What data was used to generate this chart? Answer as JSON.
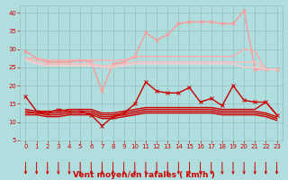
{
  "x": [
    0,
    1,
    2,
    3,
    4,
    5,
    6,
    7,
    8,
    9,
    10,
    11,
    12,
    13,
    14,
    15,
    16,
    17,
    18,
    19,
    20,
    21,
    22,
    23
  ],
  "series": [
    {
      "name": "line1_pink_rising",
      "color": "#ff9999",
      "lw": 1.0,
      "marker": "x",
      "ms": 2.5,
      "values": [
        29.5,
        27.5,
        26.5,
        26.5,
        26.5,
        27.0,
        26.5,
        18.5,
        26.0,
        26.5,
        28.0,
        34.5,
        32.5,
        34.0,
        37.0,
        37.5,
        37.5,
        37.5,
        37.0,
        37.0,
        40.5,
        24.5,
        24.5,
        24.5
      ]
    },
    {
      "name": "line2_pink_flat_top",
      "color": "#ffaaaa",
      "lw": 1.0,
      "marker": null,
      "ms": 0,
      "values": [
        27.5,
        27.5,
        27.0,
        27.0,
        27.0,
        27.0,
        27.0,
        27.0,
        27.0,
        27.0,
        28.0,
        28.0,
        28.0,
        28.0,
        28.0,
        28.0,
        28.0,
        28.0,
        28.0,
        28.0,
        30.0,
        29.5,
        24.5,
        24.5
      ]
    },
    {
      "name": "line3_pink_flat",
      "color": "#ffbbbb",
      "lw": 1.0,
      "marker": null,
      "ms": 0,
      "values": [
        27.5,
        26.5,
        26.0,
        26.0,
        26.0,
        26.0,
        26.0,
        25.5,
        25.5,
        26.0,
        26.5,
        26.5,
        26.5,
        26.5,
        26.5,
        26.5,
        26.5,
        26.5,
        26.5,
        26.5,
        26.5,
        26.5,
        24.5,
        24.5
      ]
    },
    {
      "name": "line4_pink_lower",
      "color": "#ffcccc",
      "lw": 1.0,
      "marker": null,
      "ms": 0,
      "values": [
        27.0,
        26.0,
        25.5,
        25.5,
        25.5,
        25.5,
        25.5,
        25.0,
        25.0,
        25.5,
        26.0,
        26.0,
        26.0,
        26.0,
        26.0,
        26.0,
        26.0,
        26.0,
        26.0,
        26.0,
        25.0,
        25.0,
        24.5,
        24.5
      ]
    },
    {
      "name": "line5_dark_red_variable",
      "color": "#cc0000",
      "lw": 1.0,
      "marker": "x",
      "ms": 2.5,
      "values": [
        17.0,
        13.0,
        12.5,
        13.5,
        13.0,
        13.0,
        12.0,
        9.0,
        11.5,
        12.5,
        15.0,
        21.0,
        18.5,
        18.0,
        18.0,
        19.5,
        15.5,
        16.5,
        14.5,
        20.0,
        16.0,
        15.5,
        15.5,
        12.0
      ]
    },
    {
      "name": "line6_dark_red_flat1",
      "color": "#cc0000",
      "lw": 1.0,
      "marker": null,
      "ms": 0,
      "values": [
        13.5,
        13.0,
        13.0,
        13.0,
        13.5,
        13.5,
        13.5,
        12.5,
        12.5,
        13.0,
        13.5,
        14.0,
        14.0,
        14.0,
        14.0,
        14.0,
        14.0,
        14.0,
        13.5,
        13.5,
        13.5,
        13.5,
        15.5,
        12.0
      ]
    },
    {
      "name": "line7_dark_red_flat2",
      "color": "#cc0000",
      "lw": 1.0,
      "marker": null,
      "ms": 0,
      "values": [
        13.0,
        12.5,
        12.5,
        12.5,
        13.0,
        13.0,
        13.0,
        12.0,
        12.0,
        12.5,
        13.0,
        13.5,
        13.5,
        13.5,
        13.5,
        13.5,
        13.5,
        13.5,
        13.0,
        13.0,
        13.0,
        13.0,
        12.5,
        11.5
      ]
    },
    {
      "name": "line8_dark_red_flat3",
      "color": "#cc0000",
      "lw": 1.0,
      "marker": null,
      "ms": 0,
      "values": [
        12.5,
        12.5,
        12.0,
        12.0,
        12.5,
        12.5,
        12.5,
        11.5,
        11.5,
        12.0,
        12.5,
        13.0,
        13.0,
        13.0,
        13.0,
        13.0,
        13.0,
        13.0,
        12.5,
        12.5,
        12.5,
        12.5,
        12.0,
        11.0
      ]
    },
    {
      "name": "line9_dark_red_flat4",
      "color": "#cc0000",
      "lw": 1.0,
      "marker": null,
      "ms": 0,
      "values": [
        12.0,
        12.0,
        11.5,
        11.5,
        12.0,
        12.0,
        12.0,
        11.0,
        11.0,
        11.5,
        12.0,
        12.5,
        12.5,
        12.5,
        12.5,
        12.5,
        12.5,
        12.5,
        12.0,
        12.0,
        12.0,
        12.0,
        11.5,
        10.5
      ]
    }
  ],
  "xlabel": "Vent moyen/en rafales ( km/h )",
  "xlim": [
    -0.5,
    23.5
  ],
  "ylim": [
    5,
    42
  ],
  "yticks": [
    5,
    10,
    15,
    20,
    25,
    30,
    35,
    40
  ],
  "xticks": [
    0,
    1,
    2,
    3,
    4,
    5,
    6,
    7,
    8,
    9,
    10,
    11,
    12,
    13,
    14,
    15,
    16,
    17,
    18,
    19,
    20,
    21,
    22,
    23
  ],
  "bg_color": "#b0dede",
  "grid_color": "#90c0c0",
  "arrow_color": "#cc0000",
  "xlabel_color": "#cc0000",
  "tick_color": "#cc0000",
  "axis_label_fontsize": 6.5,
  "tick_fontsize": 5.0
}
